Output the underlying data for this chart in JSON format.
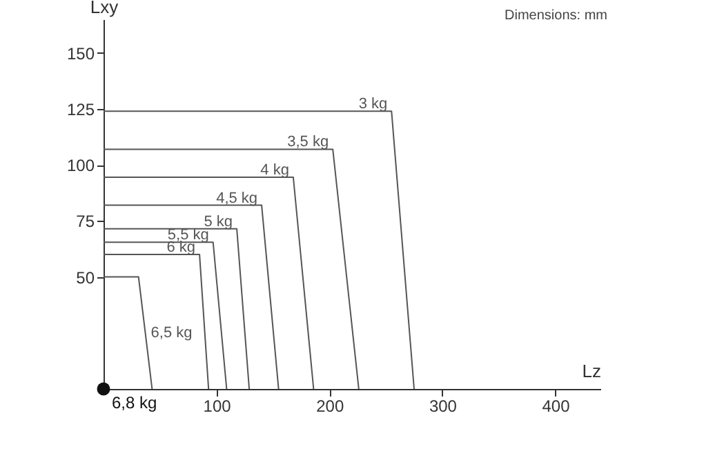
{
  "chart_data": {
    "type": "line",
    "xlabel": "Lz",
    "ylabel": "Lxy",
    "annotations": [
      "Dimensions: mm"
    ],
    "xlim": [
      0,
      440
    ],
    "ylim": [
      0,
      165
    ],
    "xticks": [
      100,
      200,
      300,
      400
    ],
    "yticks": [
      50,
      75,
      100,
      125,
      150
    ],
    "grid": false,
    "series": [
      {
        "name": "3 kg",
        "color": "#555555",
        "x": [
          0,
          255,
          275
        ],
        "values": [
          124,
          124,
          0
        ]
      },
      {
        "name": "3,5 kg",
        "color": "#555555",
        "x": [
          0,
          203,
          226
        ],
        "values": [
          107,
          107,
          0
        ]
      },
      {
        "name": "4 kg",
        "color": "#555555",
        "x": [
          0,
          168,
          186
        ],
        "values": [
          94.5,
          94.5,
          0
        ]
      },
      {
        "name": "4,5 kg",
        "color": "#555555",
        "x": [
          0,
          140,
          155
        ],
        "values": [
          82,
          82,
          0
        ]
      },
      {
        "name": "5 kg",
        "color": "#555555",
        "x": [
          0,
          118,
          129
        ],
        "values": [
          71.5,
          71.5,
          0
        ]
      },
      {
        "name": "5,5 kg",
        "color": "#555555",
        "x": [
          0,
          97,
          109
        ],
        "values": [
          65.5,
          65.5,
          0
        ]
      },
      {
        "name": "6 kg",
        "color": "#555555",
        "x": [
          0,
          85,
          93
        ],
        "values": [
          60,
          60,
          0
        ]
      },
      {
        "name": "6,5 kg",
        "color": "#555555",
        "x": [
          0,
          31,
          43
        ],
        "values": [
          50,
          50,
          0
        ]
      },
      {
        "name": "6,8 kg",
        "type": "scatter",
        "marker": "circle",
        "color": "#111111",
        "x": [
          0
        ],
        "values": [
          0
        ]
      }
    ]
  }
}
